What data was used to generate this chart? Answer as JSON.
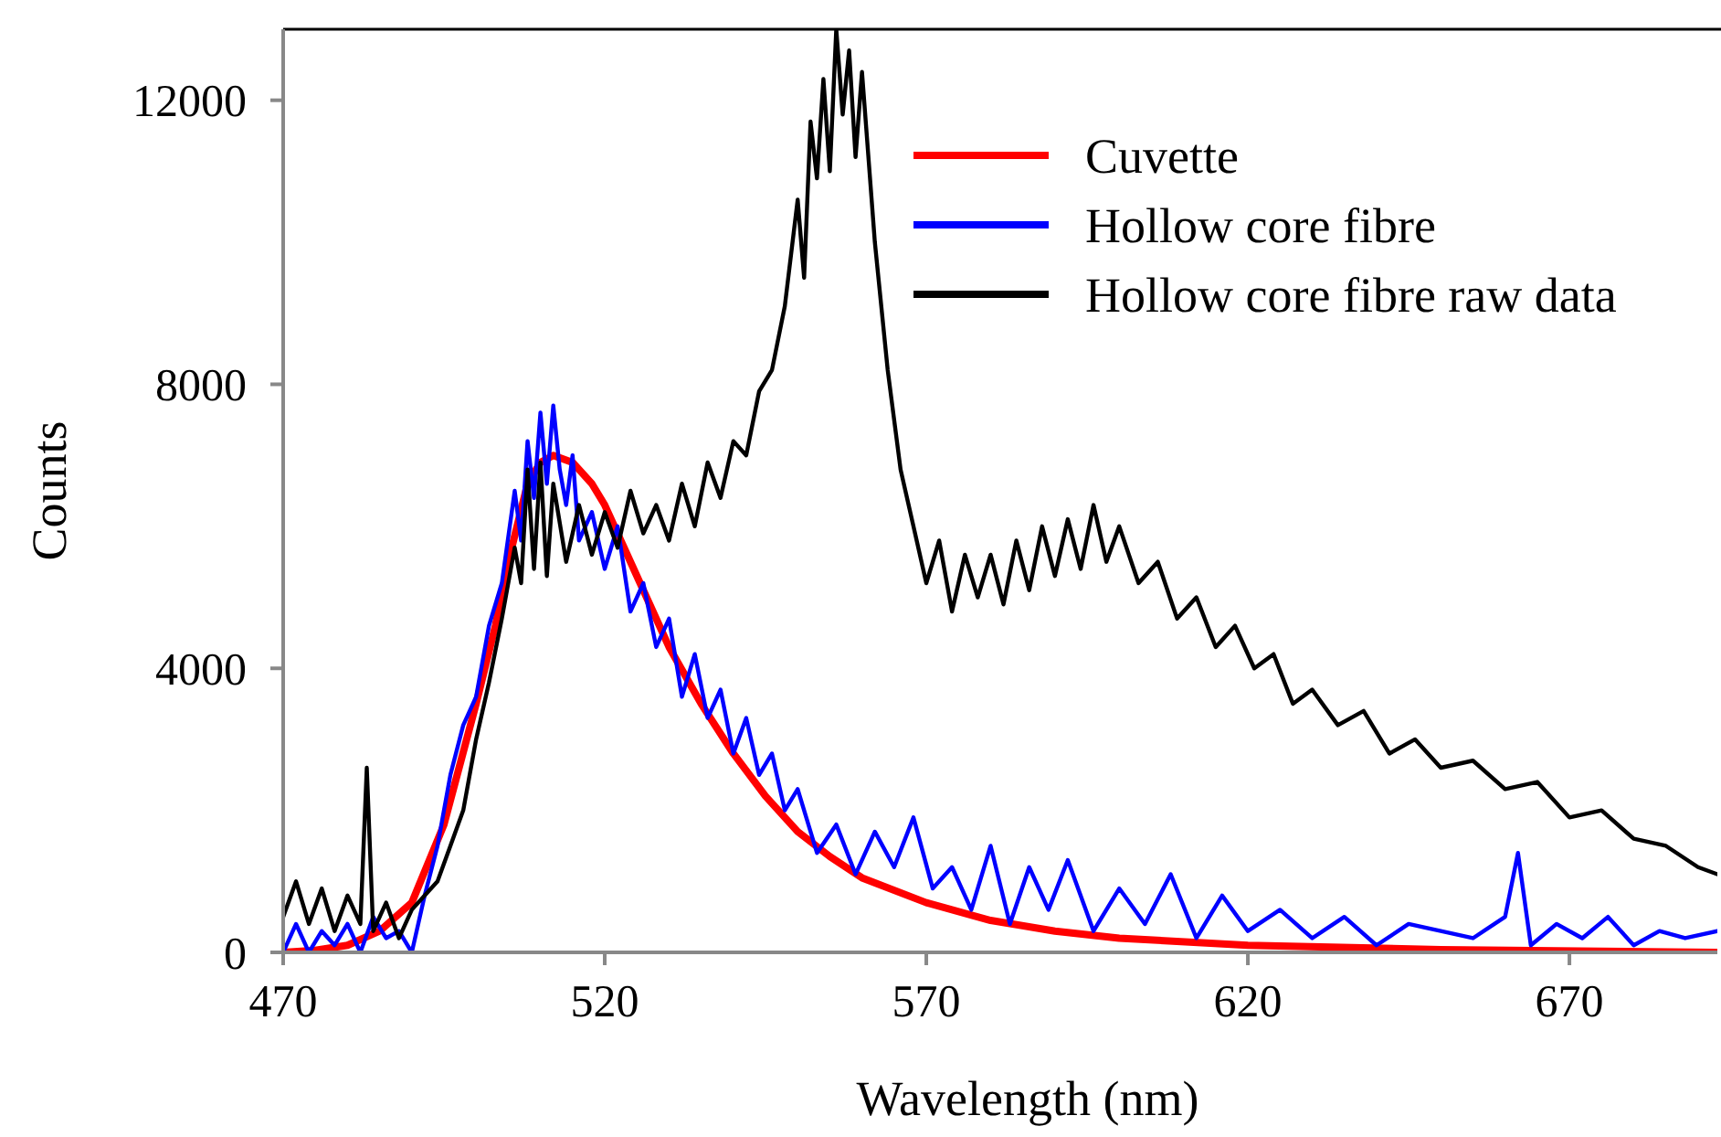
{
  "chart_data": {
    "type": "line",
    "xlabel": "Wavelength (nm)",
    "ylabel": "Counts",
    "xlim": [
      470,
      693
    ],
    "ylim": [
      0,
      13000
    ],
    "xticks": [
      470,
      520,
      570,
      620,
      670
    ],
    "yticks": [
      0,
      4000,
      8000,
      12000
    ],
    "grid": false,
    "legend": "top right",
    "marker": "none",
    "line_style": "solid",
    "series": [
      {
        "name": "Cuvette",
        "color": "#ff0000",
        "x": [
          470,
          475,
          480,
          485,
          490,
          495,
          500,
          503,
          505,
          508,
          510,
          512,
          515,
          518,
          520,
          525,
          530,
          535,
          540,
          545,
          550,
          555,
          560,
          570,
          580,
          590,
          600,
          620,
          650,
          693
        ],
        "values": [
          0,
          30,
          100,
          300,
          700,
          1800,
          3500,
          4600,
          5500,
          6600,
          6900,
          7000,
          6900,
          6600,
          6300,
          5300,
          4300,
          3500,
          2800,
          2200,
          1700,
          1350,
          1050,
          700,
          450,
          300,
          200,
          100,
          40,
          0
        ]
      },
      {
        "name": "Hollow core fibre",
        "color": "#0000ff",
        "x": [
          470,
          472,
          474,
          476,
          478,
          480,
          482,
          484,
          486,
          488,
          490,
          492,
          494,
          496,
          498,
          500,
          502,
          504,
          506,
          507,
          508,
          509,
          510,
          511,
          512,
          513,
          514,
          515,
          516,
          518,
          520,
          522,
          524,
          526,
          528,
          530,
          532,
          534,
          536,
          538,
          540,
          542,
          544,
          546,
          548,
          550,
          553,
          556,
          559,
          562,
          565,
          568,
          571,
          574,
          577,
          580,
          583,
          586,
          589,
          592,
          596,
          600,
          604,
          608,
          612,
          616,
          620,
          625,
          630,
          635,
          640,
          645,
          650,
          655,
          660,
          662,
          664,
          668,
          672,
          676,
          680,
          684,
          688,
          693
        ],
        "values": [
          0,
          400,
          0,
          300,
          100,
          400,
          0,
          500,
          200,
          300,
          0,
          800,
          1500,
          2500,
          3200,
          3600,
          4600,
          5200,
          6500,
          5800,
          7200,
          6400,
          7600,
          6600,
          7700,
          6800,
          6300,
          7000,
          5800,
          6200,
          5400,
          6000,
          4800,
          5200,
          4300,
          4700,
          3600,
          4200,
          3300,
          3700,
          2800,
          3300,
          2500,
          2800,
          2000,
          2300,
          1400,
          1800,
          1100,
          1700,
          1200,
          1900,
          900,
          1200,
          600,
          1500,
          400,
          1200,
          600,
          1300,
          300,
          900,
          400,
          1100,
          200,
          800,
          300,
          600,
          200,
          500,
          100,
          400,
          300,
          200,
          500,
          1400,
          100,
          400,
          200,
          500,
          100,
          300,
          200,
          300
        ]
      },
      {
        "name": "Hollow core fibre raw data",
        "color": "#000000",
        "x": [
          470,
          472,
          474,
          476,
          478,
          480,
          482,
          483,
          484,
          486,
          488,
          490,
          492,
          494,
          496,
          498,
          500,
          502,
          504,
          506,
          507,
          508,
          509,
          510,
          511,
          512,
          514,
          516,
          518,
          520,
          522,
          524,
          526,
          528,
          530,
          532,
          534,
          536,
          538,
          540,
          542,
          544,
          546,
          548,
          550,
          551,
          552,
          553,
          554,
          555,
          556,
          557,
          558,
          559,
          560,
          562,
          564,
          566,
          568,
          570,
          572,
          574,
          576,
          578,
          580,
          582,
          584,
          586,
          588,
          590,
          592,
          594,
          596,
          598,
          600,
          603,
          606,
          609,
          612,
          615,
          618,
          621,
          624,
          627,
          630,
          634,
          638,
          642,
          646,
          650,
          655,
          660,
          665,
          670,
          675,
          680,
          685,
          690,
          693
        ],
        "values": [
          500,
          1000,
          400,
          900,
          300,
          800,
          400,
          2600,
          300,
          700,
          200,
          600,
          800,
          1000,
          1500,
          2000,
          3000,
          3800,
          4700,
          5700,
          5200,
          6800,
          5400,
          6900,
          5300,
          6600,
          5500,
          6300,
          5600,
          6200,
          5700,
          6500,
          5900,
          6300,
          5800,
          6600,
          6000,
          6900,
          6400,
          7200,
          7000,
          7900,
          8200,
          9100,
          10600,
          9500,
          11700,
          10900,
          12300,
          11000,
          13000,
          11800,
          12700,
          11200,
          12400,
          10000,
          8200,
          6800,
          6000,
          5200,
          5800,
          4800,
          5600,
          5000,
          5600,
          4900,
          5800,
          5100,
          6000,
          5300,
          6100,
          5400,
          6300,
          5500,
          6000,
          5200,
          5500,
          4700,
          5000,
          4300,
          4600,
          4000,
          4200,
          3500,
          3700,
          3200,
          3400,
          2800,
          3000,
          2600,
          2700,
          2300,
          2400,
          1900,
          2000,
          1600,
          1500,
          1200,
          1100
        ]
      }
    ]
  }
}
